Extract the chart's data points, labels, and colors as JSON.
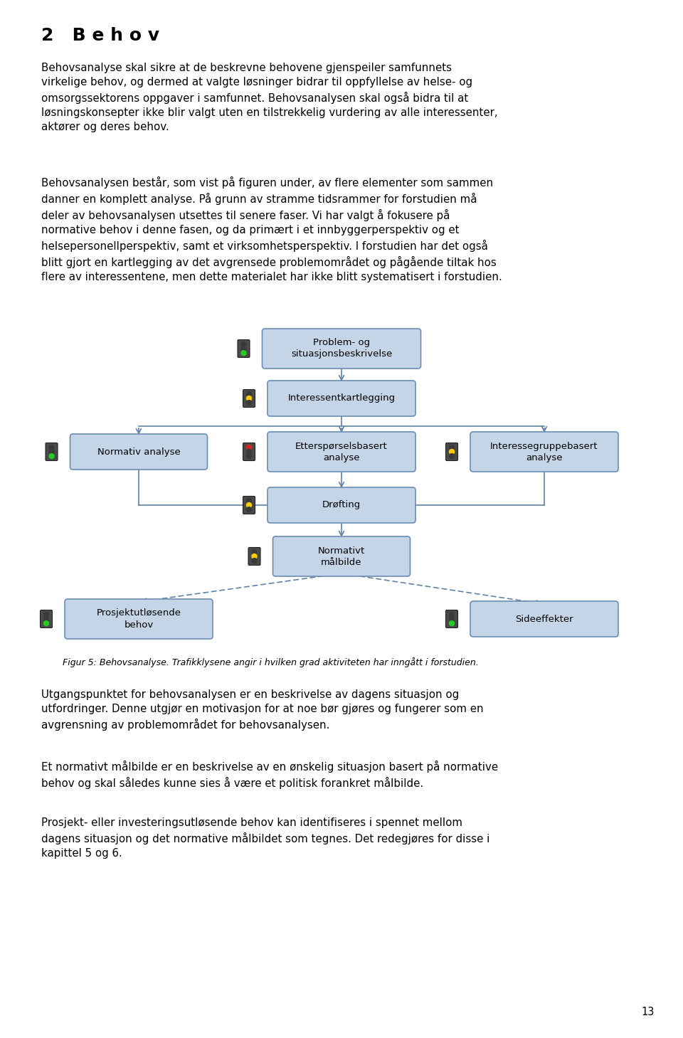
{
  "title": "2   B e h o v",
  "para1": "Behovsanalyse skal sikre at de beskrevne behovene gjenspeiler samfunnets virkelige behov, og dermed at valgte løsninger bidrar til oppfyllelse av helse- og omsorgssektorens oppgaver i samfunnet. Behovsanalysen skal også bidra til at løsningskonsepter ikke blir valgt uten en tilstrekkelig vurdering av alle interessenter, aktører og deres behov.",
  "para2": "Behovsanalysen består, som vist på figuren under, av flere elementer som sammen danner en komplett analyse. På grunn av stramme tidsrammer for forstudien må deler av behovsanalysen utsettes til senere faser. Vi har valgt å fokusere på normative behov i denne fasen, og da primært i et innbyggerperspektiv og et helsepersonellperspektiv, samt et virksomhetsperspektiv. I forstudien har det også blitt gjort en kartlegging av det avgrensede området og pågående tiltak hos flere av interessentene, men dette materialet har ikke blitt systematisert i forstudien.",
  "fig_caption": "Figur 5: Behovsanalyse. Trafikklysene angir i hvilken grad aktiviteten har inngått i forstudien.",
  "para3": "Utgangspunktet for behovsanalysen er en beskrivelse av dagens situasjon og utfordringer. Denne utgjør en motivasjon for at noe bør gjøres og fungerer som en avgrensning av området for behovsanalysen.",
  "para4": "Et normativt målbilde er en beskrivelse av en ønskelig situasjon basert på normative behov og skal således kunne sies å være et politisk forankret målbilde.",
  "para5": "Prosjekt- eller investeringsløsende behov kan identifiseres i spennet mellom dagens situasjon og det normative målbildet som tegnes. Det redegjøres for disse i kapittel 5 og 6.",
  "page_num": "13",
  "box_fill": "#C5D5E8",
  "box_edge_color": "#6B8DB5",
  "arrow_color": "#5F82A6",
  "bg_color": "#FFFFFF"
}
